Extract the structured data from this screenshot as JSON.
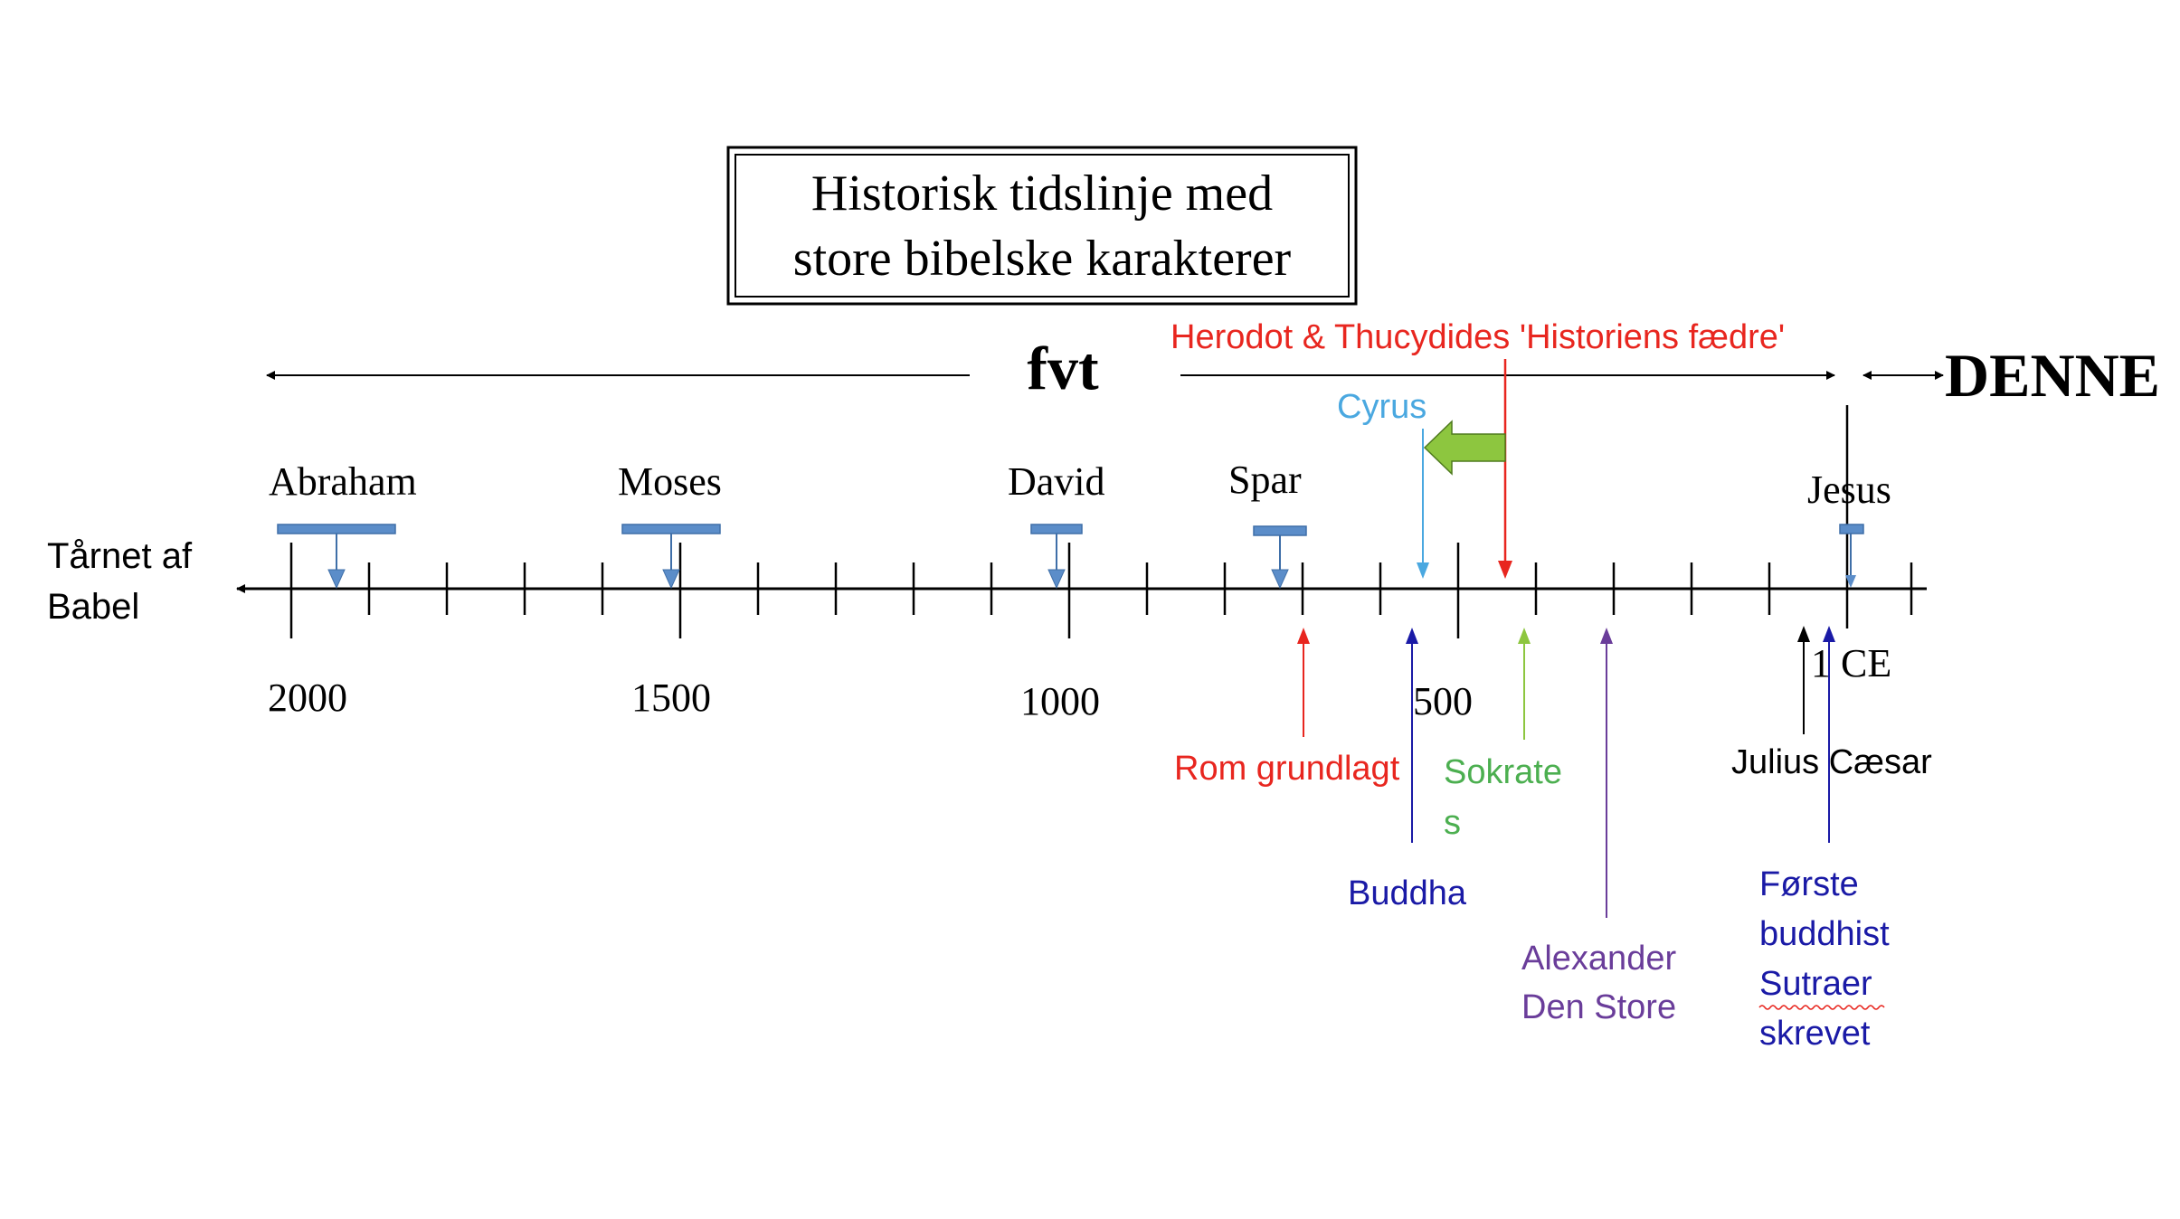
{
  "title": {
    "line1": "Historisk tidslinje med",
    "line2": "store bibelske karakterer"
  },
  "era_labels": {
    "bce": "fvt",
    "ce": "DENNE"
  },
  "left_label": {
    "line1": "Tårnet af",
    "line2": "Babel"
  },
  "axis": {
    "ticks": [
      "2000",
      "1500",
      "1000",
      "500",
      "1 CE"
    ]
  },
  "figures": [
    {
      "id": "abraham",
      "label": "Abraham"
    },
    {
      "id": "moses",
      "label": "Moses"
    },
    {
      "id": "david",
      "label": "David"
    },
    {
      "id": "spar",
      "label": "Spar"
    },
    {
      "id": "jesus",
      "label": "Jesus"
    }
  ],
  "events_above": [
    {
      "id": "herodot",
      "label": "Herodot & Thucydides 'Historiens fædre'",
      "color": "#e8261f"
    },
    {
      "id": "cyrus",
      "label": "Cyrus",
      "color": "#4aa8e0"
    }
  ],
  "events_below": [
    {
      "id": "rom",
      "label": "Rom grundlagt",
      "color": "#e8261f"
    },
    {
      "id": "sokrates",
      "line1": "Sokrate",
      "line2": "s",
      "color": "#4caf50"
    },
    {
      "id": "buddha",
      "label": "Buddha",
      "color": "#1a1aa6"
    },
    {
      "id": "alexander",
      "line1": "Alexander",
      "line2": "Den Store",
      "color": "#6a3d9a"
    },
    {
      "id": "caesar",
      "label": "Julius Cæsar",
      "color": "#000000"
    },
    {
      "id": "sutras",
      "line1": "Første",
      "line2": "buddhist",
      "line3": "Sutraer",
      "line4": "skrevet",
      "color": "#1a1aa6"
    }
  ],
  "colors": {
    "bar_fill": "#5b8dc9",
    "bar_stroke": "#3f6fa8",
    "green_arrow": "#8dc63f"
  }
}
